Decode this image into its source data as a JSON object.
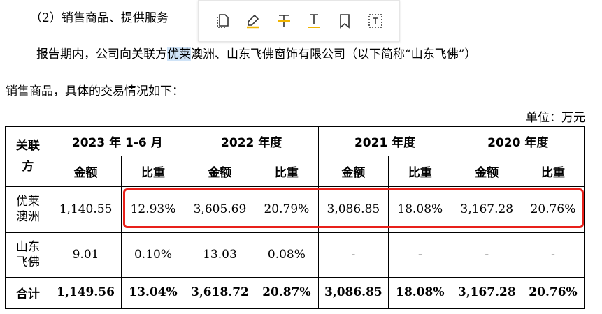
{
  "paragraph": {
    "line1": "（2）销售商品、提供服务",
    "line2_a": "报告期内，公司向关联方",
    "line2_highlight": "优莱",
    "line2_b": "澳洲、山东飞佛窗饰有限公司（以下简称“山东飞佛”）",
    "line3": "销售商品，具体的交易情况如下："
  },
  "unit": "单位：万元",
  "toolbar": {
    "icons": [
      "copy-icon",
      "highlight-pen-icon",
      "strikethrough-text-icon",
      "underline-text-icon",
      "bookmark-icon",
      "text-select-icon"
    ]
  },
  "table": {
    "corner_label": "关联方",
    "periods": [
      "2023 年 1-6 月",
      "2022 年度",
      "2021 年度",
      "2020 年度"
    ],
    "sub_headers": [
      "金额",
      "比重"
    ],
    "rows": [
      {
        "label": "优莱澳洲",
        "cells": [
          "1,140.55",
          "12.93%",
          "3,605.69",
          "20.79%",
          "3,086.85",
          "18.08%",
          "3,167.28",
          "20.76%"
        ]
      },
      {
        "label": "山东飞佛",
        "cells": [
          "9.01",
          "0.10%",
          "13.03",
          "0.08%",
          "-",
          "-",
          "-",
          "-"
        ]
      },
      {
        "label": "合计",
        "cells": [
          "1,149.56",
          "13.04%",
          "3,618.72",
          "20.87%",
          "3,086.85",
          "18.08%",
          "3,167.28",
          "20.76%"
        ]
      }
    ]
  },
  "colors": {
    "highlight_box": "#e8201a",
    "text_selection": "#cfe3f7"
  }
}
